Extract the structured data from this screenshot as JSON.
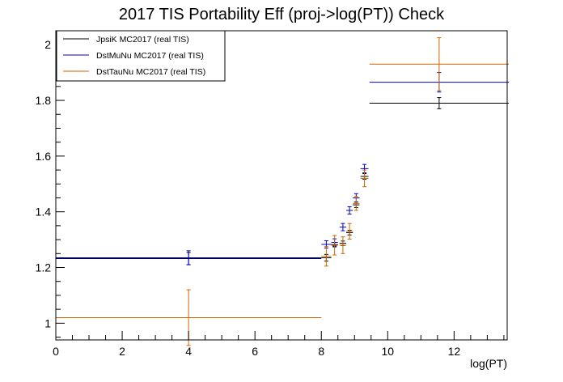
{
  "chart_data": {
    "type": "scatter",
    "title": "2017 TIS Portability Eff (proj->log(PT)) Check",
    "xlabel": "log(PT)",
    "ylabel": "",
    "xlim": [
      0,
      13.6
    ],
    "ylim": [
      0.94,
      2.05
    ],
    "xticks": [
      0,
      2,
      4,
      6,
      8,
      10,
      12
    ],
    "yticks": [
      1,
      1.2,
      1.4,
      1.6,
      1.8,
      2
    ],
    "xtick_labels": [
      "0",
      "2",
      "4",
      "6",
      "8",
      "10",
      "12"
    ],
    "ytick_labels": [
      "1",
      "1.2",
      "1.4",
      "1.6",
      "1.8",
      "2"
    ],
    "grid": false,
    "legend_position": "top-left",
    "series": [
      {
        "name": "JpsiK MC2017 (real TIS)",
        "color": "#000000",
        "points": [
          {
            "x": 4.0,
            "xerr": 4.0,
            "y": 1.232,
            "yerr": 0.022
          },
          {
            "x": 8.15,
            "xerr": 0.15,
            "y": 1.235,
            "yerr": 0.012
          },
          {
            "x": 8.4,
            "xerr": 0.1,
            "y": 1.282,
            "yerr": 0.008
          },
          {
            "x": 8.65,
            "xerr": 0.1,
            "y": 1.287,
            "yerr": 0.008
          },
          {
            "x": 8.85,
            "xerr": 0.1,
            "y": 1.325,
            "yerr": 0.008
          },
          {
            "x": 9.05,
            "xerr": 0.1,
            "y": 1.425,
            "yerr": 0.01
          },
          {
            "x": 9.3,
            "xerr": 0.12,
            "y": 1.527,
            "yerr": 0.01
          },
          {
            "x": 11.55,
            "xerr": 2.1,
            "y": 1.79,
            "yerr": 0.02
          }
        ]
      },
      {
        "name": "DstMuNu MC2017 (real TIS)",
        "color": "#0000cc",
        "points": [
          {
            "x": 4.0,
            "xerr": 4.0,
            "y": 1.235,
            "yerr": 0.025
          },
          {
            "x": 8.15,
            "xerr": 0.15,
            "y": 1.283,
            "yerr": 0.013
          },
          {
            "x": 8.4,
            "xerr": 0.1,
            "y": 1.29,
            "yerr": 0.013
          },
          {
            "x": 8.65,
            "xerr": 0.1,
            "y": 1.345,
            "yerr": 0.013
          },
          {
            "x": 8.85,
            "xerr": 0.1,
            "y": 1.405,
            "yerr": 0.013
          },
          {
            "x": 9.05,
            "xerr": 0.1,
            "y": 1.45,
            "yerr": 0.015
          },
          {
            "x": 9.3,
            "xerr": 0.12,
            "y": 1.555,
            "yerr": 0.015
          },
          {
            "x": 11.55,
            "xerr": 2.1,
            "y": 1.865,
            "yerr": 0.035
          }
        ]
      },
      {
        "name": "DstTauNu MC2017 (real TIS)",
        "color": "#cc6600",
        "points": [
          {
            "x": 4.0,
            "xerr": 4.0,
            "y": 1.02,
            "yerr": 0.1
          },
          {
            "x": 8.15,
            "xerr": 0.15,
            "y": 1.24,
            "yerr": 0.035
          },
          {
            "x": 8.4,
            "xerr": 0.1,
            "y": 1.28,
            "yerr": 0.035
          },
          {
            "x": 8.65,
            "xerr": 0.1,
            "y": 1.28,
            "yerr": 0.03
          },
          {
            "x": 8.85,
            "xerr": 0.1,
            "y": 1.33,
            "yerr": 0.028
          },
          {
            "x": 9.05,
            "xerr": 0.1,
            "y": 1.43,
            "yerr": 0.025
          },
          {
            "x": 9.3,
            "xerr": 0.12,
            "y": 1.52,
            "yerr": 0.03
          },
          {
            "x": 11.55,
            "xerr": 2.1,
            "y": 1.93,
            "yerr": 0.095
          }
        ]
      }
    ]
  }
}
